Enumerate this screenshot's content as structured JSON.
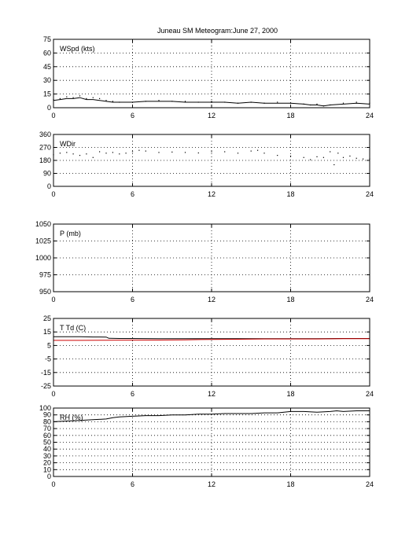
{
  "figure": {
    "title": "Juneau SM Meteogram:",
    "date": "June 27, 2000"
  },
  "chart_data": [
    {
      "type": "line",
      "label": "WSpd (kts)",
      "xlim": [
        0,
        24
      ],
      "ylim": [
        0,
        75
      ],
      "xticks": [
        0,
        6,
        12,
        18,
        24
      ],
      "yticks": [
        0,
        15,
        30,
        45,
        60,
        75
      ],
      "grid": true,
      "series": [
        {
          "color": "#000000",
          "style": "dots",
          "x": [
            0,
            0.5,
            1,
            1.5,
            2,
            2.5,
            3,
            3.5,
            4,
            4.5,
            5,
            6,
            7,
            8,
            9,
            10,
            11,
            12,
            13,
            14,
            15,
            16,
            17,
            18,
            19,
            19.5,
            20,
            20.5,
            21,
            22,
            23,
            24
          ],
          "y": [
            9,
            10,
            12,
            11,
            13,
            10,
            11,
            10,
            8,
            7,
            6,
            6,
            7,
            8,
            7,
            7,
            6,
            7,
            6,
            5,
            6,
            5,
            6,
            5,
            4,
            3,
            4,
            2,
            3,
            5,
            6,
            5
          ]
        },
        {
          "color": "#000000",
          "style": "line",
          "x": [
            0,
            0.5,
            1,
            1.5,
            2,
            2.5,
            3,
            3.5,
            4,
            4.5,
            5,
            6,
            7,
            8,
            9,
            10,
            11,
            12,
            13,
            14,
            15,
            16,
            17,
            18,
            19,
            19.5,
            20,
            20.5,
            21,
            22,
            23,
            24
          ],
          "y": [
            8,
            9,
            10,
            10,
            11,
            9,
            9,
            8,
            7,
            6,
            6,
            6,
            7,
            7,
            7,
            6,
            6,
            6,
            6,
            5,
            6,
            5,
            5,
            5,
            4,
            3,
            3,
            2,
            3,
            4,
            5,
            4
          ]
        }
      ]
    },
    {
      "type": "scatter",
      "label": "WDir",
      "xlim": [
        0,
        24
      ],
      "ylim": [
        0,
        360
      ],
      "xticks": [
        0,
        6,
        12,
        18,
        24
      ],
      "yticks": [
        0,
        90,
        180,
        270,
        360
      ],
      "grid": true,
      "series": [
        {
          "color": "#000000",
          "style": "dots",
          "x": [
            0,
            0.5,
            1,
            1.5,
            2,
            2.5,
            3,
            3.5,
            4,
            4.5,
            5,
            5.5,
            6,
            6.5,
            7,
            8,
            9,
            10,
            11,
            12,
            13,
            14,
            15,
            15.5,
            16,
            17,
            18,
            19,
            19.5,
            20,
            20.5,
            21,
            21.3,
            21.6,
            22,
            22.5,
            23,
            23.5,
            24
          ],
          "y": [
            220,
            230,
            235,
            225,
            215,
            225,
            200,
            240,
            230,
            235,
            225,
            230,
            240,
            250,
            245,
            235,
            238,
            235,
            232,
            240,
            240,
            230,
            245,
            250,
            230,
            215,
            210,
            200,
            185,
            205,
            200,
            240,
            150,
            230,
            200,
            210,
            195,
            190,
            190
          ]
        }
      ]
    },
    {
      "type": "line",
      "label": "P (mb)",
      "xlim": [
        0,
        24
      ],
      "ylim": [
        950,
        1050
      ],
      "xticks": [
        0,
        6,
        12,
        18,
        24
      ],
      "yticks": [
        950,
        975,
        1000,
        1025,
        1050
      ],
      "grid": true,
      "series": []
    },
    {
      "type": "line",
      "label": "T Td (C)",
      "xlim": [
        0,
        24
      ],
      "ylim": [
        -25,
        25
      ],
      "xticks": [
        0,
        6,
        12,
        18,
        24
      ],
      "yticks": [
        -25,
        -15,
        -5,
        5,
        15,
        25
      ],
      "grid": true,
      "series": [
        {
          "color": "#000000",
          "style": "line",
          "x": [
            0,
            1,
            2,
            3,
            4,
            4.2,
            5,
            6,
            8,
            10,
            12,
            14,
            16,
            18,
            20,
            22,
            24
          ],
          "y": [
            11.5,
            11.5,
            11.5,
            11.3,
            11.2,
            10.3,
            10.2,
            10.2,
            10,
            10,
            10,
            10,
            10,
            10,
            10,
            10.2,
            10.2
          ]
        },
        {
          "color": "#cc0000",
          "style": "line",
          "x": [
            0,
            2,
            4,
            6,
            8,
            10,
            12,
            14,
            16,
            18,
            20,
            22,
            24
          ],
          "y": [
            8.8,
            8.8,
            8.9,
            9,
            9,
            9.2,
            9.5,
            9.6,
            9.8,
            9.8,
            9.8,
            10,
            10
          ]
        }
      ]
    },
    {
      "type": "line",
      "label": "RH (%)",
      "xlim": [
        0,
        24
      ],
      "ylim": [
        0,
        100
      ],
      "xticks": [
        0,
        6,
        12,
        18,
        24
      ],
      "yticks": [
        0,
        10,
        20,
        30,
        40,
        50,
        60,
        70,
        80,
        90,
        100
      ],
      "grid": true,
      "series": [
        {
          "color": "#000000",
          "style": "line",
          "x": [
            0,
            1,
            2,
            3,
            4,
            4.5,
            5,
            6,
            7,
            8,
            9,
            10,
            11,
            12,
            13,
            14,
            15,
            16,
            17,
            17.5,
            18,
            19,
            20,
            21,
            21.5,
            22,
            23,
            24
          ],
          "y": [
            80,
            81,
            82,
            83,
            84,
            86,
            87,
            88,
            89,
            89,
            90,
            90,
            91,
            91,
            92,
            92,
            92,
            93,
            93,
            94,
            95,
            95,
            94,
            95,
            96,
            95,
            96,
            96
          ]
        }
      ]
    }
  ]
}
